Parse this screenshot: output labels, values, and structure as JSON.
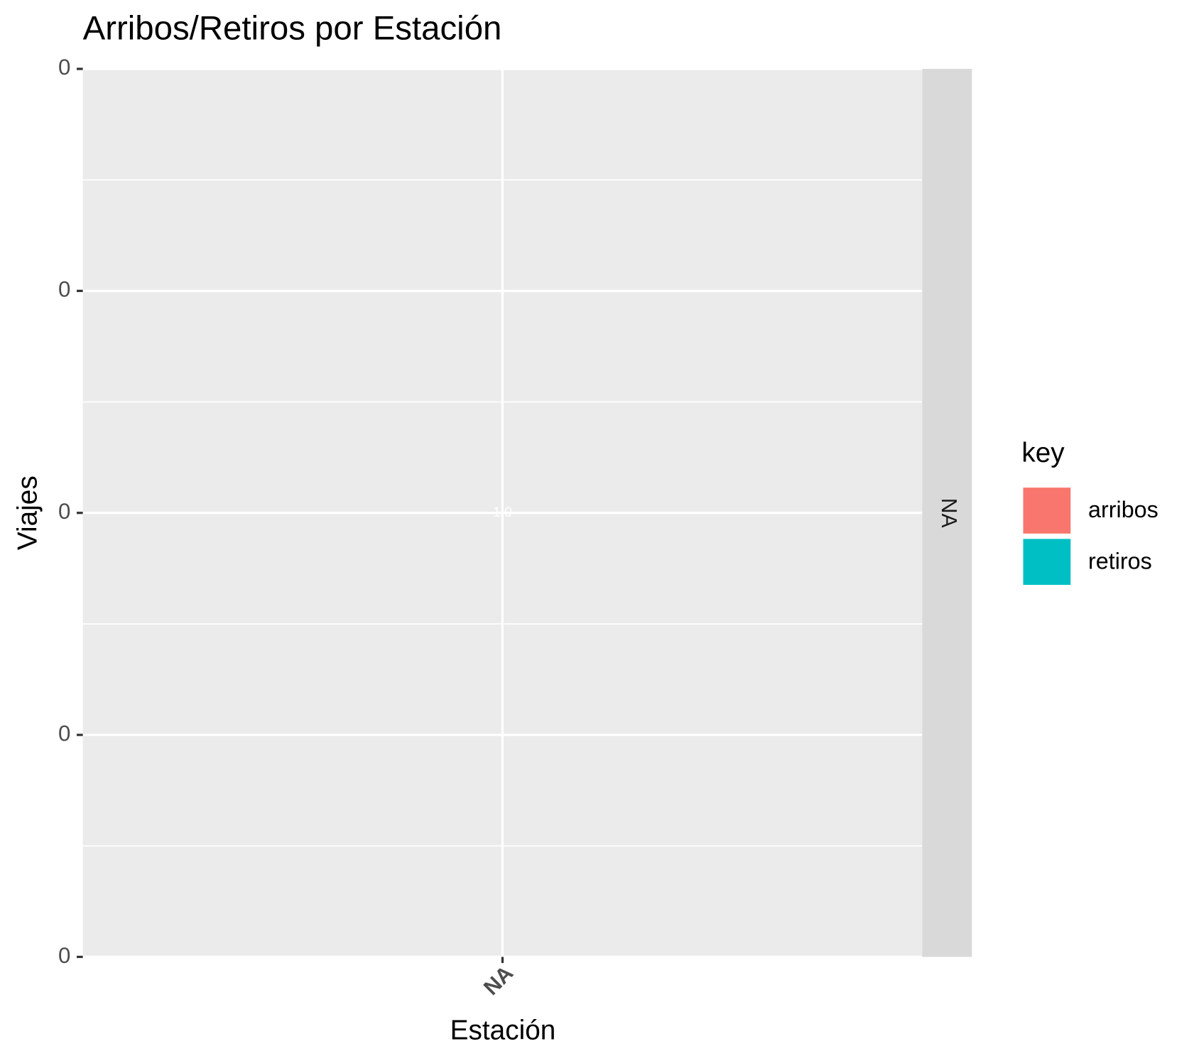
{
  "chart_data": {
    "type": "bar",
    "title": "Arribos/Retiros por Estación",
    "x_label": "Estación",
    "y_label": "Viajes",
    "facet": "NA",
    "legend_title": "key",
    "annotation": "1.0",
    "categories": [
      "NA"
    ],
    "series": [
      {
        "name": "arribos",
        "color": "#F8766D",
        "values": [
          null
        ]
      },
      {
        "name": "retiros",
        "color": "#00BFC4",
        "values": [
          null
        ]
      }
    ],
    "ylim": [
      -0.04,
      0.04
    ],
    "yticks": [
      {
        "value": -0.04,
        "label": "0"
      },
      {
        "value": -0.02,
        "label": "0"
      },
      {
        "value": 0,
        "label": "0"
      },
      {
        "value": 0.02,
        "label": "0"
      },
      {
        "value": 0.04,
        "label": "0"
      }
    ],
    "grid": true,
    "legend": "right"
  }
}
